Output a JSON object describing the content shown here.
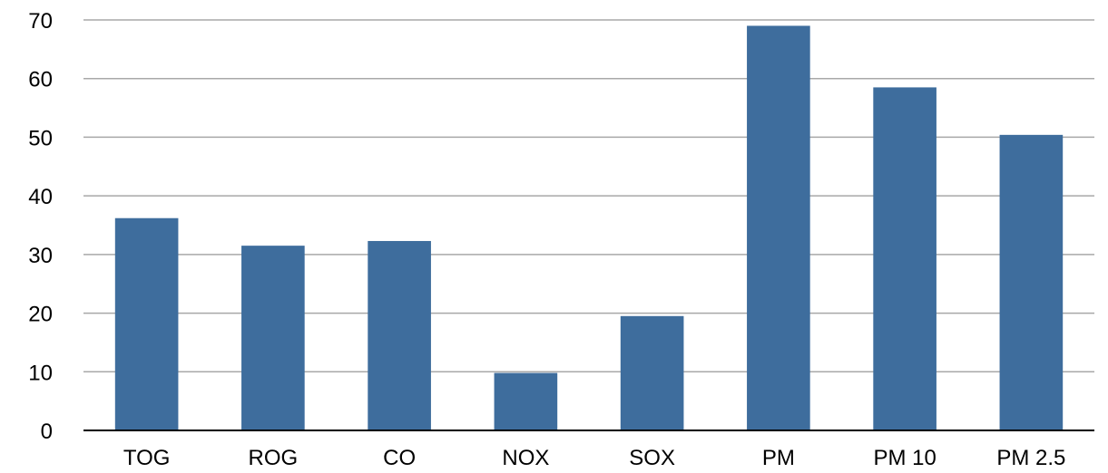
{
  "chart_data": {
    "type": "bar",
    "categories": [
      "TOG",
      "ROG",
      "CO",
      "NOX",
      "SOX",
      "PM",
      "PM 10",
      "PM 2.5"
    ],
    "values": [
      36.2,
      31.5,
      32.3,
      9.8,
      19.5,
      69.0,
      58.5,
      50.4
    ],
    "ylim": [
      0,
      70
    ],
    "yticks": [
      0,
      10,
      20,
      30,
      40,
      50,
      60,
      70
    ],
    "grid": true,
    "legend": "none",
    "colors": {
      "bar": "#3e6d9d"
    }
  }
}
